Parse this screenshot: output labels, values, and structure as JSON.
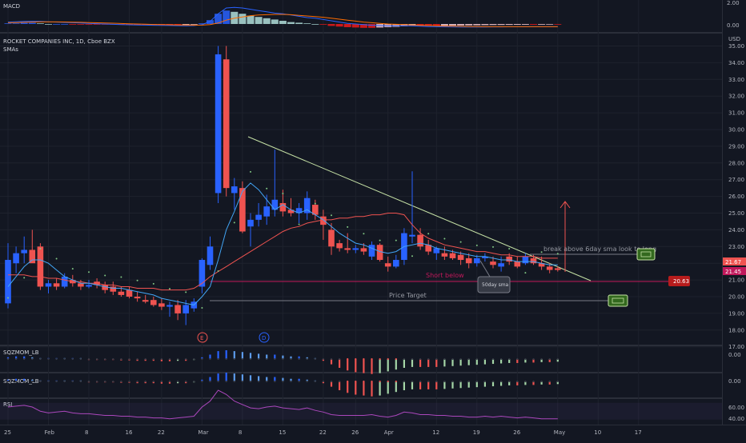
{
  "colors": {
    "up": "#2962ff",
    "down": "#ef5350",
    "sma6": "#42a5f5",
    "sma50": "#ef5350",
    "trendline": "#c5e1a5",
    "support": "#c2185b",
    "target_line": "#787b86",
    "macd_line": "#2962ff",
    "signal_line": "#ff6d00",
    "rsi": "#ab47bc",
    "arrow": "#ef5350"
  },
  "macd": {
    "label": "MACD",
    "ticks": [
      "2.00",
      "0.00"
    ]
  },
  "main": {
    "symbol_label": "ROCKET COMPANIES INC, 1D, Cboe BZX",
    "indicator_label": "SMAs",
    "currency": "USD",
    "price_ticks": [
      "35.00",
      "34.00",
      "33.00",
      "32.00",
      "31.00",
      "30.00",
      "29.00",
      "28.00",
      "27.00",
      "26.00",
      "25.00",
      "24.00",
      "23.00",
      "22.00",
      "21.00",
      "20.00",
      "19.00",
      "18.00",
      "17.00"
    ],
    "current_price_label": "21.67",
    "sma_price_label": "21.45",
    "support_price_label": "20.63",
    "earnings_marker": "E",
    "dividend_marker": "D"
  },
  "annotations": {
    "breakout_note": "break above 6day sma look to long",
    "short_note": "Short below",
    "sma_note": "50day sma",
    "target_note": "Price Target"
  },
  "sqz1": {
    "label": "SQZMOM_LB",
    "tick": "0.00"
  },
  "sqz2": {
    "label": "SQZMOM_LB",
    "tick": "0.00"
  },
  "rsi": {
    "label": "RSI",
    "ticks": [
      "60.00",
      "40.00"
    ]
  },
  "time_axis": {
    "labels": [
      {
        "text": "25",
        "idx": 0
      },
      {
        "text": "Feb",
        "idx": 5
      },
      {
        "text": "8",
        "idx": 10
      },
      {
        "text": "16",
        "idx": 15
      },
      {
        "text": "22",
        "idx": 19
      },
      {
        "text": "Mar",
        "idx": 24
      },
      {
        "text": "8",
        "idx": 29
      },
      {
        "text": "15",
        "idx": 34
      },
      {
        "text": "22",
        "idx": 39
      },
      {
        "text": "26",
        "idx": 43
      },
      {
        "text": "Apr",
        "idx": 47
      },
      {
        "text": "12",
        "idx": 53
      },
      {
        "text": "19",
        "idx": 58
      },
      {
        "text": "26",
        "idx": 63
      },
      {
        "text": "May",
        "idx": 68
      },
      {
        "text": "10",
        "idx": 73
      },
      {
        "text": "17",
        "idx": 78
      }
    ]
  },
  "chart_data": {
    "type": "candlestick",
    "ylim": [
      17,
      35
    ],
    "candles": [
      {
        "o": 19.6,
        "h": 23.2,
        "l": 19.3,
        "c": 22.2
      },
      {
        "o": 22.0,
        "h": 23.0,
        "l": 21.4,
        "c": 22.6
      },
      {
        "o": 22.6,
        "h": 23.6,
        "l": 22.0,
        "c": 22.8
      },
      {
        "o": 22.8,
        "h": 24.0,
        "l": 22.1,
        "c": 22.0
      },
      {
        "o": 23.0,
        "h": 23.2,
        "l": 20.4,
        "c": 20.6
      },
      {
        "o": 20.6,
        "h": 21.0,
        "l": 20.2,
        "c": 20.8
      },
      {
        "o": 20.8,
        "h": 21.1,
        "l": 20.4,
        "c": 20.6
      },
      {
        "o": 20.6,
        "h": 21.4,
        "l": 20.5,
        "c": 21.2
      },
      {
        "o": 21.0,
        "h": 21.3,
        "l": 20.6,
        "c": 20.8
      },
      {
        "o": 20.8,
        "h": 21.0,
        "l": 20.4,
        "c": 20.6
      },
      {
        "o": 20.6,
        "h": 21.0,
        "l": 20.5,
        "c": 20.7
      },
      {
        "o": 20.9,
        "h": 21.1,
        "l": 20.5,
        "c": 20.7
      },
      {
        "o": 20.7,
        "h": 20.9,
        "l": 20.2,
        "c": 20.4
      },
      {
        "o": 20.6,
        "h": 20.9,
        "l": 20.1,
        "c": 20.3
      },
      {
        "o": 20.3,
        "h": 20.6,
        "l": 20.0,
        "c": 20.1
      },
      {
        "o": 20.4,
        "h": 20.6,
        "l": 19.9,
        "c": 20.0
      },
      {
        "o": 20.0,
        "h": 20.3,
        "l": 19.7,
        "c": 19.9
      },
      {
        "o": 19.8,
        "h": 20.1,
        "l": 19.6,
        "c": 19.7
      },
      {
        "o": 19.8,
        "h": 20.0,
        "l": 19.4,
        "c": 19.5
      },
      {
        "o": 19.6,
        "h": 19.9,
        "l": 19.2,
        "c": 19.4
      },
      {
        "o": 19.4,
        "h": 19.7,
        "l": 18.8,
        "c": 19.5
      },
      {
        "o": 19.5,
        "h": 19.8,
        "l": 18.6,
        "c": 19.0
      },
      {
        "o": 19.0,
        "h": 19.8,
        "l": 18.3,
        "c": 19.5
      },
      {
        "o": 19.3,
        "h": 19.9,
        "l": 19.1,
        "c": 19.7
      },
      {
        "o": 20.6,
        "h": 22.3,
        "l": 20.2,
        "c": 22.2
      },
      {
        "o": 21.9,
        "h": 23.6,
        "l": 21.6,
        "c": 23.0
      },
      {
        "o": 26.2,
        "h": 35.0,
        "l": 25.6,
        "c": 34.5
      },
      {
        "o": 34.2,
        "h": 35.0,
        "l": 26.0,
        "c": 26.5
      },
      {
        "o": 26.2,
        "h": 27.1,
        "l": 25.2,
        "c": 26.6
      },
      {
        "o": 26.5,
        "h": 26.9,
        "l": 23.8,
        "c": 23.9
      },
      {
        "o": 24.2,
        "h": 25.0,
        "l": 23.0,
        "c": 24.6
      },
      {
        "o": 24.6,
        "h": 25.6,
        "l": 24.2,
        "c": 24.9
      },
      {
        "o": 24.8,
        "h": 26.1,
        "l": 24.3,
        "c": 25.4
      },
      {
        "o": 25.2,
        "h": 28.8,
        "l": 24.8,
        "c": 25.8
      },
      {
        "o": 25.6,
        "h": 26.4,
        "l": 24.8,
        "c": 25.1
      },
      {
        "o": 25.2,
        "h": 25.9,
        "l": 24.8,
        "c": 25.0
      },
      {
        "o": 25.0,
        "h": 25.6,
        "l": 24.4,
        "c": 25.3
      },
      {
        "o": 25.0,
        "h": 26.3,
        "l": 24.6,
        "c": 25.9
      },
      {
        "o": 25.5,
        "h": 25.8,
        "l": 24.6,
        "c": 24.9
      },
      {
        "o": 24.8,
        "h": 25.2,
        "l": 23.4,
        "c": 24.3
      },
      {
        "o": 24.0,
        "h": 24.4,
        "l": 22.5,
        "c": 23.0
      },
      {
        "o": 23.2,
        "h": 23.4,
        "l": 22.7,
        "c": 22.9
      },
      {
        "o": 22.9,
        "h": 23.8,
        "l": 22.6,
        "c": 22.8
      },
      {
        "o": 22.8,
        "h": 23.1,
        "l": 22.6,
        "c": 22.9
      },
      {
        "o": 22.9,
        "h": 23.2,
        "l": 22.5,
        "c": 22.7
      },
      {
        "o": 22.4,
        "h": 23.3,
        "l": 22.2,
        "c": 23.1
      },
      {
        "o": 23.1,
        "h": 23.2,
        "l": 22.1,
        "c": 22.2
      },
      {
        "o": 22.0,
        "h": 22.4,
        "l": 21.5,
        "c": 21.8
      },
      {
        "o": 21.8,
        "h": 22.5,
        "l": 21.7,
        "c": 22.2
      },
      {
        "o": 22.2,
        "h": 24.1,
        "l": 21.9,
        "c": 23.8
      },
      {
        "o": 23.6,
        "h": 27.5,
        "l": 23.2,
        "c": 23.7
      },
      {
        "o": 23.7,
        "h": 24.1,
        "l": 22.8,
        "c": 23.0
      },
      {
        "o": 23.1,
        "h": 23.4,
        "l": 22.5,
        "c": 22.7
      },
      {
        "o": 22.6,
        "h": 23.0,
        "l": 22.2,
        "c": 22.9
      },
      {
        "o": 22.6,
        "h": 23.0,
        "l": 22.2,
        "c": 22.4
      },
      {
        "o": 22.6,
        "h": 22.8,
        "l": 22.2,
        "c": 22.3
      },
      {
        "o": 22.5,
        "h": 22.7,
        "l": 21.9,
        "c": 22.2
      },
      {
        "o": 22.3,
        "h": 22.6,
        "l": 21.7,
        "c": 22.0
      },
      {
        "o": 22.0,
        "h": 22.5,
        "l": 21.8,
        "c": 22.3
      },
      {
        "o": 22.3,
        "h": 22.6,
        "l": 22.1,
        "c": 22.4
      },
      {
        "o": 22.1,
        "h": 22.4,
        "l": 21.7,
        "c": 21.9
      },
      {
        "o": 21.8,
        "h": 22.4,
        "l": 21.5,
        "c": 22.0
      },
      {
        "o": 22.4,
        "h": 22.6,
        "l": 21.9,
        "c": 22.1
      },
      {
        "o": 22.1,
        "h": 22.4,
        "l": 21.7,
        "c": 21.8
      },
      {
        "o": 22.0,
        "h": 22.6,
        "l": 21.9,
        "c": 22.4
      },
      {
        "o": 22.3,
        "h": 22.5,
        "l": 21.9,
        "c": 22.0
      },
      {
        "o": 22.0,
        "h": 22.4,
        "l": 21.6,
        "c": 21.8
      },
      {
        "o": 21.8,
        "h": 22.0,
        "l": 21.4,
        "c": 21.6
      },
      {
        "o": 21.7,
        "h": 21.8,
        "l": 21.5,
        "c": 21.6
      }
    ],
    "sma50": [
      21.3,
      21.3,
      21.3,
      21.2,
      21.2,
      21.1,
      21.1,
      21.0,
      20.9,
      20.9,
      20.8,
      20.8,
      20.7,
      20.7,
      20.6,
      20.6,
      20.5,
      20.5,
      20.5,
      20.4,
      20.4,
      20.4,
      20.4,
      20.5,
      20.8,
      21.2,
      21.5,
      21.8,
      22.1,
      22.4,
      22.7,
      23.0,
      23.3,
      23.6,
      23.9,
      24.1,
      24.2,
      24.4,
      24.5,
      24.6,
      24.6,
      24.7,
      24.7,
      24.8,
      24.8,
      24.9,
      24.9,
      25.0,
      25.0,
      24.9,
      24.3,
      23.8,
      23.5,
      23.3,
      23.1,
      23.0,
      22.9,
      22.8,
      22.7,
      22.7,
      22.6,
      22.5,
      22.5,
      22.4,
      22.4,
      22.4,
      22.3,
      22.3,
      22.3
    ],
    "sma6": [
      20.6,
      21.2,
      21.8,
      22.2,
      22.2,
      22.0,
      21.6,
      21.2,
      21.0,
      20.8,
      20.8,
      20.7,
      20.6,
      20.5,
      20.5,
      20.4,
      20.3,
      20.2,
      20.1,
      19.9,
      19.8,
      19.7,
      19.6,
      19.5,
      20.0,
      20.6,
      22.2,
      24.0,
      25.1,
      26.3,
      26.8,
      26.4,
      25.8,
      25.2,
      25.5,
      25.2,
      25.0,
      25.2,
      24.9,
      24.6,
      24.2,
      23.8,
      23.5,
      23.2,
      23.1,
      22.9,
      22.7,
      22.6,
      22.7,
      23.0,
      23.1,
      23.2,
      23.1,
      22.9,
      22.8,
      22.7,
      22.6,
      22.5,
      22.4,
      22.4,
      22.3,
      22.2,
      22.2,
      22.1,
      22.1,
      22.1,
      22.0,
      21.9,
      21.9
    ],
    "macd_hist": [
      0.1,
      0.1,
      0.2,
      0.2,
      0.1,
      0.0,
      0.0,
      0.0,
      -0.05,
      -0.05,
      -0.05,
      -0.08,
      -0.1,
      -0.1,
      -0.12,
      -0.12,
      -0.14,
      -0.14,
      -0.15,
      -0.15,
      -0.16,
      -0.16,
      -0.15,
      -0.1,
      0.1,
      0.6,
      1.6,
      2.1,
      1.9,
      1.6,
      1.3,
      1.1,
      0.9,
      0.7,
      0.5,
      0.3,
      0.2,
      0.1,
      0.0,
      -0.1,
      -0.3,
      -0.4,
      -0.5,
      -0.55,
      -0.6,
      -0.6,
      -0.55,
      -0.5,
      -0.45,
      -0.35,
      -0.3,
      -0.3,
      -0.3,
      -0.3,
      -0.28,
      -0.26,
      -0.24,
      -0.22,
      -0.2,
      -0.18,
      -0.16,
      -0.15,
      -0.14,
      -0.13,
      -0.12,
      -0.12,
      -0.11,
      -0.1,
      -0.1
    ],
    "macd_line": [
      0.3,
      0.35,
      0.4,
      0.42,
      0.4,
      0.35,
      0.3,
      0.25,
      0.2,
      0.15,
      0.1,
      0.05,
      0.0,
      -0.05,
      -0.1,
      -0.12,
      -0.15,
      -0.18,
      -0.2,
      -0.22,
      -0.24,
      -0.26,
      -0.27,
      -0.25,
      -0.1,
      0.4,
      1.6,
      2.5,
      2.6,
      2.5,
      2.3,
      2.1,
      1.9,
      1.7,
      1.6,
      1.4,
      1.2,
      1.0,
      0.9,
      0.7,
      0.5,
      0.3,
      0.1,
      0.0,
      -0.1,
      -0.2,
      -0.25,
      -0.3,
      -0.3,
      -0.28,
      -0.3,
      -0.35,
      -0.4,
      -0.42,
      -0.44,
      -0.45,
      -0.46,
      -0.46,
      -0.46,
      -0.46,
      -0.45,
      -0.45,
      -0.44,
      -0.44,
      -0.43,
      -0.43,
      -0.42,
      -0.42,
      -0.42
    ],
    "signal_line": [
      0.2,
      0.22,
      0.26,
      0.3,
      0.32,
      0.33,
      0.32,
      0.31,
      0.29,
      0.26,
      0.23,
      0.19,
      0.16,
      0.12,
      0.08,
      0.04,
      0.0,
      -0.04,
      -0.07,
      -0.1,
      -0.13,
      -0.15,
      -0.17,
      -0.19,
      -0.17,
      -0.1,
      0.15,
      0.6,
      0.9,
      1.1,
      1.3,
      1.4,
      1.45,
      1.5,
      1.5,
      1.45,
      1.35,
      1.25,
      1.15,
      1.05,
      0.9,
      0.75,
      0.6,
      0.45,
      0.3,
      0.2,
      0.1,
      0.0,
      -0.05,
      -0.1,
      -0.15,
      -0.2,
      -0.24,
      -0.28,
      -0.32,
      -0.35,
      -0.38,
      -0.4,
      -0.41,
      -0.42,
      -0.42,
      -0.42,
      -0.42,
      -0.42,
      -0.42,
      -0.42,
      -0.42,
      -0.42,
      -0.42
    ],
    "sqz_momentum": [
      0.2,
      0.3,
      0.3,
      0.2,
      0.1,
      0.1,
      0.1,
      0.05,
      0.05,
      0.0,
      -0.05,
      -0.05,
      -0.1,
      -0.1,
      -0.15,
      -0.15,
      -0.2,
      -0.2,
      -0.2,
      -0.25,
      -0.25,
      -0.2,
      -0.2,
      -0.1,
      0.2,
      0.5,
      0.9,
      1.0,
      0.9,
      0.8,
      0.7,
      0.6,
      0.5,
      0.5,
      0.4,
      0.3,
      0.3,
      0.2,
      0.1,
      -0.2,
      -0.6,
      -1.0,
      -1.3,
      -1.5,
      -1.6,
      -1.7,
      -1.6,
      -1.4,
      -1.2,
      -1.0,
      -0.9,
      -0.9,
      -0.9,
      -0.9,
      -0.85,
      -0.8,
      -0.75,
      -0.7,
      -0.65,
      -0.6,
      -0.55,
      -0.5,
      -0.45,
      -0.45,
      -0.4,
      -0.4,
      -0.35,
      -0.35,
      -0.3
    ],
    "rsi": [
      55,
      56,
      57,
      55,
      50,
      48,
      49,
      50,
      48,
      47,
      47,
      46,
      45,
      45,
      44,
      44,
      43,
      43,
      42,
      42,
      41,
      42,
      43,
      44,
      55,
      62,
      75,
      70,
      62,
      58,
      54,
      53,
      55,
      56,
      54,
      53,
      52,
      54,
      51,
      49,
      46,
      45,
      45,
      45,
      45,
      46,
      44,
      43,
      45,
      49,
      48,
      46,
      46,
      45,
      45,
      44,
      44,
      43,
      43,
      44,
      43,
      44,
      43,
      42,
      43,
      42,
      41,
      41,
      41
    ]
  }
}
